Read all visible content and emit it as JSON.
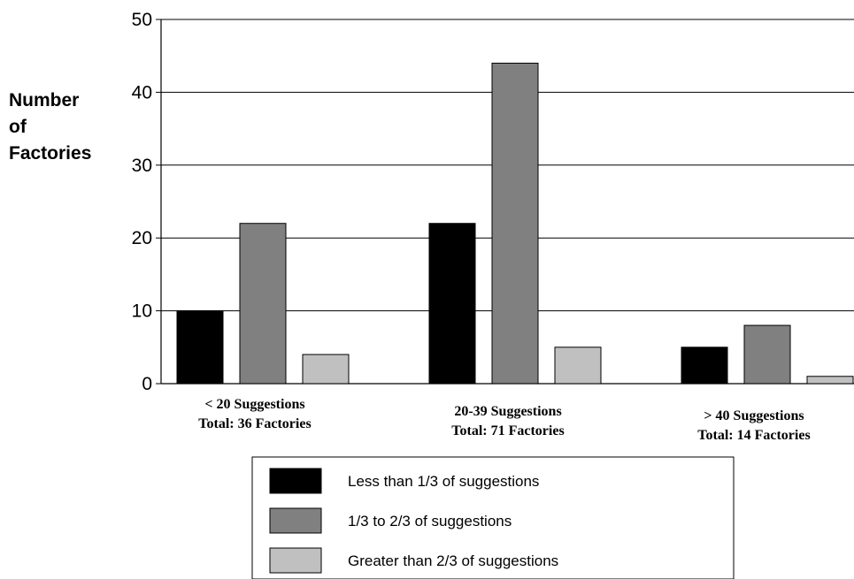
{
  "chart_data": {
    "type": "bar",
    "ylabel_lines": [
      "Number",
      "of",
      "Factories"
    ],
    "ylim": [
      0,
      50
    ],
    "yticks": [
      0,
      10,
      20,
      30,
      40,
      50
    ],
    "grid": true,
    "legend_position": "bottom",
    "categories": [
      {
        "line1": "< 20  Suggestions",
        "line2": "Total: 36 Factories"
      },
      {
        "line1": "20-39 Suggestions",
        "line2": "Total: 71 Factories"
      },
      {
        "line1": "> 40 Suggestions",
        "line2": "Total: 14 Factories"
      }
    ],
    "series": [
      {
        "name": "Less than 1/3 of suggestions",
        "color": "#000000",
        "values": [
          10,
          22,
          5
        ]
      },
      {
        "name": "1/3 to 2/3 of suggestions",
        "color": "#808080",
        "values": [
          22,
          44,
          8
        ]
      },
      {
        "name": "Greater than 2/3 of suggestions",
        "color": "#c0c0c0",
        "values": [
          4,
          5,
          1
        ]
      }
    ]
  }
}
